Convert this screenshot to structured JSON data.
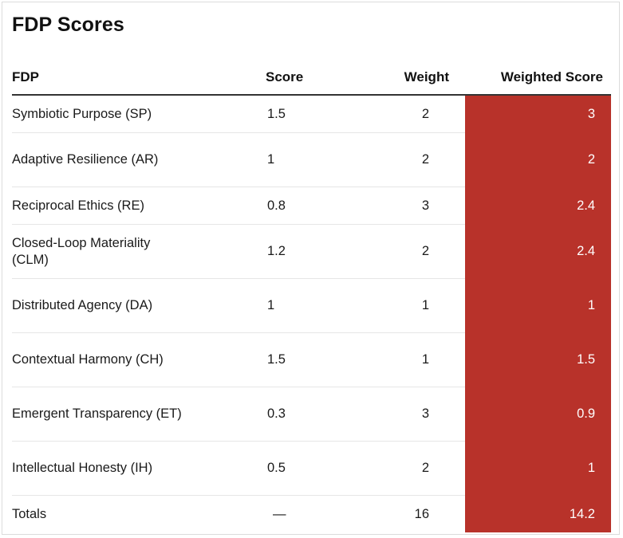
{
  "title": "FDP Scores",
  "columns": {
    "fdp": "FDP",
    "score": "Score",
    "weight": "Weight",
    "weighted_score": "Weighted Score"
  },
  "rows": [
    {
      "fdp": "Symbiotic Purpose (SP)",
      "score": "1.5",
      "weight": "2",
      "weighted_score": "3"
    },
    {
      "fdp": "Adaptive Resilience (AR)",
      "score": "1",
      "weight": "2",
      "weighted_score": "2"
    },
    {
      "fdp": "Reciprocal Ethics (RE)",
      "score": "0.8",
      "weight": "3",
      "weighted_score": "2.4"
    },
    {
      "fdp": "Closed-Loop Materiality (CLM)",
      "score": "1.2",
      "weight": "2",
      "weighted_score": "2.4"
    },
    {
      "fdp": "Distributed Agency (DA)",
      "score": "1",
      "weight": "1",
      "weighted_score": "1"
    },
    {
      "fdp": "Contextual Harmony (CH)",
      "score": "1.5",
      "weight": "1",
      "weighted_score": "1.5"
    },
    {
      "fdp": "Emergent Transparency (ET)",
      "score": "0.3",
      "weight": "3",
      "weighted_score": "0.9"
    },
    {
      "fdp": "Intellectual Honesty (IH)",
      "score": "0.5",
      "weight": "2",
      "weighted_score": "1"
    }
  ],
  "totals": {
    "label": "Totals",
    "score": "—",
    "weight": "16",
    "weighted_score": "14.2"
  },
  "colors": {
    "highlight": "#b8322a"
  }
}
